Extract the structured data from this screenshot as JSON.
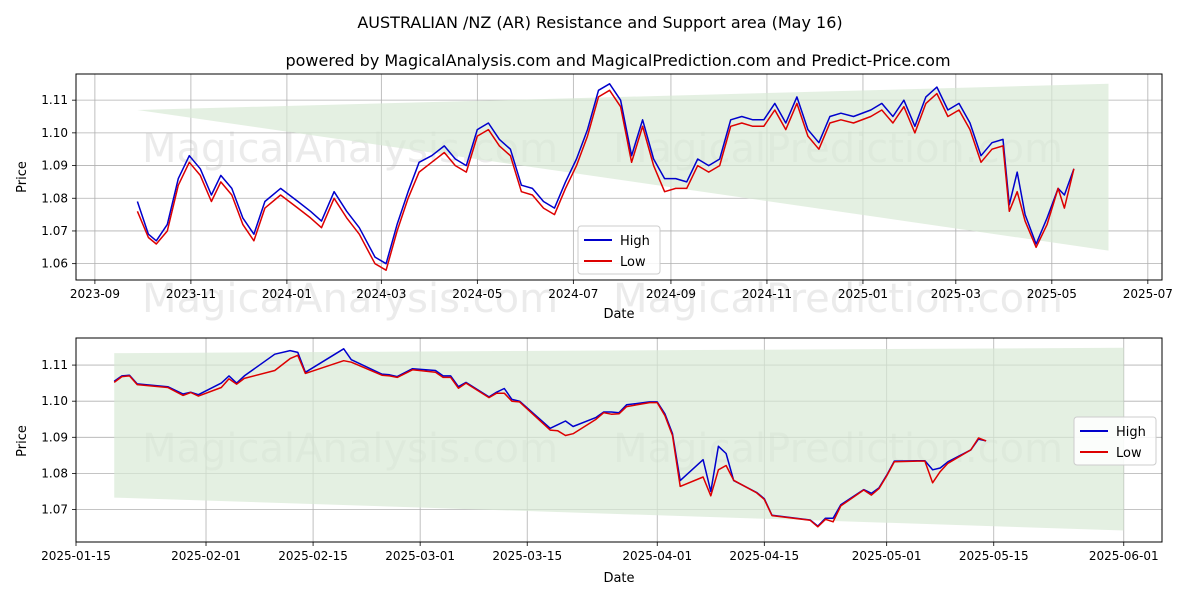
{
  "title": "AUSTRALIAN /NZ (AR) Resistance and Support area (May 16)",
  "subtitle": "powered by MagicalAnalysis.com and MagicalPrediction.com and Predict-Price.com",
  "watermark_left": "MagicalAnalysis.com",
  "watermark_right": "MagicalPrediction.com",
  "colors": {
    "high": "#0000cc",
    "low": "#dd0000",
    "band": "#d8ead6",
    "grid": "#b0b0b0"
  },
  "chart_data": [
    {
      "type": "line",
      "xlabel": "Date",
      "ylabel": "Price",
      "xlim": [
        "2023-08-20",
        "2025-07-10"
      ],
      "ylim": [
        1.055,
        1.118
      ],
      "x_ticks": [
        "2023-09",
        "2023-11",
        "2024-01",
        "2024-03",
        "2024-05",
        "2024-07",
        "2024-09",
        "2024-11",
        "2025-01",
        "2025-03",
        "2025-05",
        "2025-07"
      ],
      "y_ticks": [
        "1.06",
        "1.07",
        "1.08",
        "1.09",
        "1.10",
        "1.11"
      ],
      "legend": {
        "position": "lower-center",
        "entries": [
          "High",
          "Low"
        ]
      },
      "band": {
        "x": [
          "2023-09-28",
          "2025-06-06"
        ],
        "upper": [
          1.107,
          1.115
        ],
        "lower": [
          1.107,
          1.064
        ]
      },
      "series": [
        {
          "name": "High",
          "x": [
            "2023-09-28",
            "2023-10-05",
            "2023-10-10",
            "2023-10-17",
            "2023-10-24",
            "2023-10-31",
            "2023-11-07",
            "2023-11-14",
            "2023-11-20",
            "2023-11-27",
            "2023-12-04",
            "2023-12-11",
            "2023-12-18",
            "2023-12-28",
            "2024-01-08",
            "2024-01-16",
            "2024-01-23",
            "2024-01-31",
            "2024-02-08",
            "2024-02-16",
            "2024-02-26",
            "2024-03-04",
            "2024-03-11",
            "2024-03-18",
            "2024-03-25",
            "2024-04-02",
            "2024-04-10",
            "2024-04-17",
            "2024-04-24",
            "2024-05-01",
            "2024-05-08",
            "2024-05-15",
            "2024-05-22",
            "2024-05-29",
            "2024-06-05",
            "2024-06-12",
            "2024-06-19",
            "2024-06-26",
            "2024-07-03",
            "2024-07-10",
            "2024-07-17",
            "2024-07-24",
            "2024-07-31",
            "2024-08-07",
            "2024-08-14",
            "2024-08-21",
            "2024-08-28",
            "2024-09-04",
            "2024-09-11",
            "2024-09-18",
            "2024-09-25",
            "2024-10-02",
            "2024-10-09",
            "2024-10-16",
            "2024-10-23",
            "2024-10-30",
            "2024-11-06",
            "2024-11-13",
            "2024-11-20",
            "2024-11-27",
            "2024-12-04",
            "2024-12-11",
            "2024-12-18",
            "2024-12-26",
            "2025-01-06",
            "2025-01-13",
            "2025-01-20",
            "2025-01-27",
            "2025-02-03",
            "2025-02-10",
            "2025-02-17",
            "2025-02-24",
            "2025-03-03",
            "2025-03-10",
            "2025-03-17",
            "2025-03-24",
            "2025-03-31",
            "2025-04-04",
            "2025-04-09",
            "2025-04-14",
            "2025-04-21",
            "2025-04-28",
            "2025-05-05",
            "2025-05-09",
            "2025-05-15"
          ],
          "values": [
            1.079,
            1.069,
            1.067,
            1.072,
            1.086,
            1.093,
            1.089,
            1.081,
            1.087,
            1.083,
            1.074,
            1.069,
            1.079,
            1.083,
            1.079,
            1.076,
            1.073,
            1.082,
            1.076,
            1.071,
            1.062,
            1.06,
            1.072,
            1.082,
            1.091,
            1.093,
            1.096,
            1.092,
            1.09,
            1.101,
            1.103,
            1.098,
            1.095,
            1.084,
            1.083,
            1.079,
            1.077,
            1.085,
            1.092,
            1.101,
            1.113,
            1.115,
            1.11,
            1.093,
            1.104,
            1.092,
            1.086,
            1.086,
            1.085,
            1.092,
            1.09,
            1.092,
            1.104,
            1.105,
            1.104,
            1.104,
            1.109,
            1.103,
            1.111,
            1.101,
            1.097,
            1.105,
            1.106,
            1.105,
            1.107,
            1.109,
            1.105,
            1.11,
            1.102,
            1.111,
            1.114,
            1.107,
            1.109,
            1.103,
            1.093,
            1.097,
            1.098,
            1.078,
            1.088,
            1.075,
            1.066,
            1.074,
            1.083,
            1.081,
            1.089
          ]
        },
        {
          "name": "Low",
          "x": [
            "2023-09-28",
            "2023-10-05",
            "2023-10-10",
            "2023-10-17",
            "2023-10-24",
            "2023-10-31",
            "2023-11-07",
            "2023-11-14",
            "2023-11-20",
            "2023-11-27",
            "2023-12-04",
            "2023-12-11",
            "2023-12-18",
            "2023-12-28",
            "2024-01-08",
            "2024-01-16",
            "2024-01-23",
            "2024-01-31",
            "2024-02-08",
            "2024-02-16",
            "2024-02-26",
            "2024-03-04",
            "2024-03-11",
            "2024-03-18",
            "2024-03-25",
            "2024-04-02",
            "2024-04-10",
            "2024-04-17",
            "2024-04-24",
            "2024-05-01",
            "2024-05-08",
            "2024-05-15",
            "2024-05-22",
            "2024-05-29",
            "2024-06-05",
            "2024-06-12",
            "2024-06-19",
            "2024-06-26",
            "2024-07-03",
            "2024-07-10",
            "2024-07-17",
            "2024-07-24",
            "2024-07-31",
            "2024-08-07",
            "2024-08-14",
            "2024-08-21",
            "2024-08-28",
            "2024-09-04",
            "2024-09-11",
            "2024-09-18",
            "2024-09-25",
            "2024-10-02",
            "2024-10-09",
            "2024-10-16",
            "2024-10-23",
            "2024-10-30",
            "2024-11-06",
            "2024-11-13",
            "2024-11-20",
            "2024-11-27",
            "2024-12-04",
            "2024-12-11",
            "2024-12-18",
            "2024-12-26",
            "2025-01-06",
            "2025-01-13",
            "2025-01-20",
            "2025-01-27",
            "2025-02-03",
            "2025-02-10",
            "2025-02-17",
            "2025-02-24",
            "2025-03-03",
            "2025-03-10",
            "2025-03-17",
            "2025-03-24",
            "2025-03-31",
            "2025-04-04",
            "2025-04-09",
            "2025-04-14",
            "2025-04-21",
            "2025-04-28",
            "2025-05-05",
            "2025-05-09",
            "2025-05-15"
          ],
          "values": [
            1.076,
            1.068,
            1.066,
            1.07,
            1.084,
            1.091,
            1.087,
            1.079,
            1.085,
            1.081,
            1.072,
            1.067,
            1.077,
            1.081,
            1.077,
            1.074,
            1.071,
            1.08,
            1.074,
            1.069,
            1.06,
            1.058,
            1.07,
            1.08,
            1.088,
            1.091,
            1.094,
            1.09,
            1.088,
            1.099,
            1.101,
            1.096,
            1.093,
            1.082,
            1.081,
            1.077,
            1.075,
            1.083,
            1.09,
            1.099,
            1.111,
            1.113,
            1.108,
            1.091,
            1.102,
            1.09,
            1.082,
            1.083,
            1.083,
            1.09,
            1.088,
            1.09,
            1.102,
            1.103,
            1.102,
            1.102,
            1.107,
            1.101,
            1.109,
            1.099,
            1.095,
            1.103,
            1.104,
            1.103,
            1.105,
            1.107,
            1.103,
            1.108,
            1.1,
            1.109,
            1.112,
            1.105,
            1.107,
            1.101,
            1.091,
            1.095,
            1.096,
            1.076,
            1.082,
            1.073,
            1.065,
            1.072,
            1.083,
            1.077,
            1.089
          ]
        }
      ]
    },
    {
      "type": "line",
      "xlabel": "Date",
      "ylabel": "Price",
      "xlim": [
        "2025-01-15",
        "2025-06-06"
      ],
      "ylim": [
        1.061,
        1.1175
      ],
      "x_ticks": [
        "2025-01-15",
        "2025-02-01",
        "2025-02-15",
        "2025-03-01",
        "2025-03-15",
        "2025-04-01",
        "2025-04-15",
        "2025-05-01",
        "2025-05-15",
        "2025-06-01"
      ],
      "y_ticks": [
        "1.07",
        "1.08",
        "1.09",
        "1.10",
        "1.11"
      ],
      "legend": {
        "position": "center-right",
        "entries": [
          "High",
          "Low"
        ]
      },
      "band": {
        "x": [
          "2025-01-20",
          "2025-06-01"
        ],
        "upper": [
          1.1133,
          1.1148
        ],
        "lower": [
          1.0733,
          1.0642
        ]
      },
      "series": [
        {
          "name": "High",
          "x": [
            "2025-01-20",
            "2025-01-21",
            "2025-01-22",
            "2025-01-23",
            "2025-01-27",
            "2025-01-29",
            "2025-01-30",
            "2025-01-31",
            "2025-02-03",
            "2025-02-04",
            "2025-02-05",
            "2025-02-06",
            "2025-02-10",
            "2025-02-12",
            "2025-02-13",
            "2025-02-14",
            "2025-02-19",
            "2025-02-20",
            "2025-02-24",
            "2025-02-25",
            "2025-02-26",
            "2025-02-28",
            "2025-03-03",
            "2025-03-04",
            "2025-03-05",
            "2025-03-06",
            "2025-03-07",
            "2025-03-10",
            "2025-03-11",
            "2025-03-12",
            "2025-03-13",
            "2025-03-14",
            "2025-03-18",
            "2025-03-19",
            "2025-03-20",
            "2025-03-21",
            "2025-03-24",
            "2025-03-25",
            "2025-03-26",
            "2025-03-27",
            "2025-03-28",
            "2025-03-31",
            "2025-04-01",
            "2025-04-02",
            "2025-04-03",
            "2025-04-04",
            "2025-04-07",
            "2025-04-08",
            "2025-04-09",
            "2025-04-10",
            "2025-04-11",
            "2025-04-14",
            "2025-04-15",
            "2025-04-16",
            "2025-04-21",
            "2025-04-22",
            "2025-04-23",
            "2025-04-24",
            "2025-04-25",
            "2025-04-28",
            "2025-04-29",
            "2025-04-30",
            "2025-05-01",
            "2025-05-02",
            "2025-05-05",
            "2025-05-06",
            "2025-05-07",
            "2025-05-08",
            "2025-05-09",
            "2025-05-12",
            "2025-05-13",
            "2025-05-14"
          ],
          "values": [
            1.1055,
            1.107,
            1.1072,
            1.1048,
            1.104,
            1.102,
            1.1025,
            1.1018,
            1.105,
            1.107,
            1.105,
            1.107,
            1.113,
            1.114,
            1.1135,
            1.108,
            1.1145,
            1.1115,
            1.1075,
            1.1073,
            1.1068,
            1.109,
            1.1085,
            1.107,
            1.107,
            1.104,
            1.1052,
            1.1012,
            1.1025,
            1.1035,
            1.1005,
            1.1,
            1.0925,
            1.0935,
            1.0945,
            1.093,
            1.0955,
            1.097,
            1.097,
            1.0968,
            1.099,
            1.0998,
            1.0998,
            1.0965,
            1.091,
            1.078,
            1.0838,
            1.075,
            1.0875,
            1.0855,
            1.078,
            1.0747,
            1.073,
            1.0684,
            1.0671,
            1.0654,
            1.0676,
            1.0676,
            1.0713,
            1.0755,
            1.0745,
            1.076,
            1.0795,
            1.0834,
            1.0835,
            1.0835,
            1.081,
            1.0815,
            1.0832,
            1.0865,
            1.0895,
            1.089
          ]
        },
        {
          "name": "Low",
          "x": [
            "2025-01-20",
            "2025-01-21",
            "2025-01-22",
            "2025-01-23",
            "2025-01-27",
            "2025-01-29",
            "2025-01-30",
            "2025-01-31",
            "2025-02-03",
            "2025-02-04",
            "2025-02-05",
            "2025-02-06",
            "2025-02-10",
            "2025-02-12",
            "2025-02-13",
            "2025-02-14",
            "2025-02-19",
            "2025-02-20",
            "2025-02-24",
            "2025-02-25",
            "2025-02-26",
            "2025-02-28",
            "2025-03-03",
            "2025-03-04",
            "2025-03-05",
            "2025-03-06",
            "2025-03-07",
            "2025-03-10",
            "2025-03-11",
            "2025-03-12",
            "2025-03-13",
            "2025-03-14",
            "2025-03-18",
            "2025-03-19",
            "2025-03-20",
            "2025-03-21",
            "2025-03-24",
            "2025-03-25",
            "2025-03-26",
            "2025-03-27",
            "2025-03-28",
            "2025-03-31",
            "2025-04-01",
            "2025-04-02",
            "2025-04-03",
            "2025-04-04",
            "2025-04-07",
            "2025-04-08",
            "2025-04-09",
            "2025-04-10",
            "2025-04-11",
            "2025-04-14",
            "2025-04-15",
            "2025-04-16",
            "2025-04-21",
            "2025-04-22",
            "2025-04-23",
            "2025-04-24",
            "2025-04-25",
            "2025-04-28",
            "2025-04-29",
            "2025-04-30",
            "2025-05-01",
            "2025-05-02",
            "2025-05-05",
            "2025-05-06",
            "2025-05-07",
            "2025-05-08",
            "2025-05-09",
            "2025-05-12",
            "2025-05-13",
            "2025-05-14"
          ],
          "values": [
            1.1052,
            1.1068,
            1.107,
            1.1046,
            1.1038,
            1.1016,
            1.1024,
            1.1014,
            1.1038,
            1.1062,
            1.1047,
            1.1063,
            1.1085,
            1.1118,
            1.1127,
            1.1077,
            1.1112,
            1.1108,
            1.1072,
            1.107,
            1.1066,
            1.1087,
            1.108,
            1.1066,
            1.1066,
            1.1036,
            1.105,
            1.101,
            1.1022,
            1.1022,
            1.1,
            1.0998,
            1.092,
            1.0918,
            1.0905,
            1.091,
            1.095,
            1.0968,
            1.0964,
            1.0965,
            1.0985,
            1.0996,
            1.0996,
            1.096,
            1.0905,
            1.0764,
            1.079,
            1.0738,
            1.081,
            1.0822,
            1.0781,
            1.0746,
            1.0728,
            1.0683,
            1.067,
            1.0652,
            1.0673,
            1.0666,
            1.071,
            1.0754,
            1.074,
            1.0758,
            1.0793,
            1.0832,
            1.0834,
            1.0834,
            1.0774,
            1.0805,
            1.0828,
            1.0865,
            1.0898,
            1.089
          ]
        }
      ]
    }
  ]
}
